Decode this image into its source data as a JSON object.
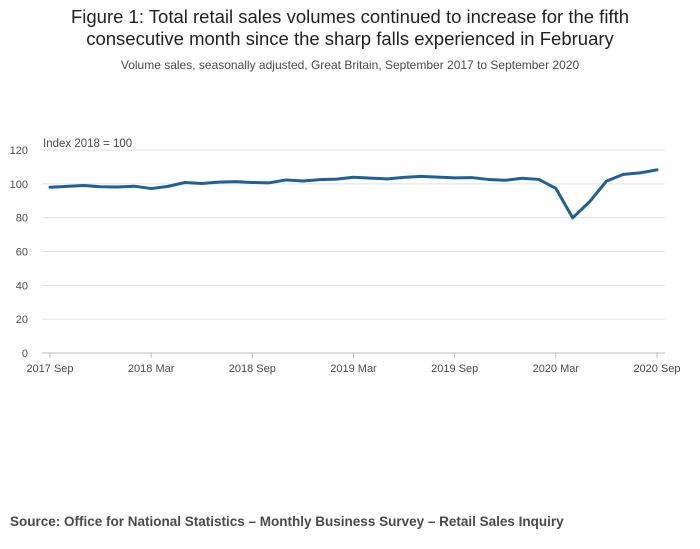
{
  "title_line1": "Figure 1: Total retail sales volumes continued to increase for the fifth",
  "title_line2": "consecutive month since the sharp falls experienced in February",
  "subtitle": "Volume sales, seasonally adjusted, Great Britain, September 2017 to September 2020",
  "source": "Source: Office for National Statistics – Monthly Business Survey – Retail Sales Inquiry",
  "colors": {
    "line": "#206095",
    "grid": "#e0e0e0",
    "axis": "#bebebe",
    "text": "#4a4a4a"
  },
  "chart_data": {
    "type": "line",
    "ylabel": "Index 2018 = 100",
    "ylim": [
      0,
      120
    ],
    "yticks": [
      0,
      20,
      40,
      60,
      80,
      100,
      120
    ],
    "grid": true,
    "xtick_labels": [
      "2017 Sep",
      "2018 Mar",
      "2018 Sep",
      "2019 Mar",
      "2019 Sep",
      "2020 Mar",
      "2020 Sep"
    ],
    "x": [
      "2017 Sep",
      "2017 Oct",
      "2017 Nov",
      "2017 Dec",
      "2018 Jan",
      "2018 Feb",
      "2018 Mar",
      "2018 Apr",
      "2018 May",
      "2018 Jun",
      "2018 Jul",
      "2018 Aug",
      "2018 Sep",
      "2018 Oct",
      "2018 Nov",
      "2018 Dec",
      "2019 Jan",
      "2019 Feb",
      "2019 Mar",
      "2019 Apr",
      "2019 May",
      "2019 Jun",
      "2019 Jul",
      "2019 Aug",
      "2019 Sep",
      "2019 Oct",
      "2019 Nov",
      "2019 Dec",
      "2020 Jan",
      "2020 Feb",
      "2020 Mar",
      "2020 Apr",
      "2020 May",
      "2020 Jun",
      "2020 Jul",
      "2020 Aug",
      "2020 Sep"
    ],
    "series": [
      {
        "values": [
          98.0,
          98.5,
          99.0,
          98.3,
          98.1,
          98.6,
          97.2,
          98.5,
          100.8,
          100.2,
          101.0,
          101.3,
          100.8,
          100.6,
          102.3,
          101.7,
          102.5,
          102.8,
          103.9,
          103.4,
          102.9,
          103.8,
          104.4,
          104.0,
          103.5,
          103.7,
          102.6,
          102.1,
          103.3,
          102.6,
          97.3,
          79.9,
          89.4,
          101.6,
          105.6,
          106.5,
          108.3
        ]
      }
    ]
  }
}
